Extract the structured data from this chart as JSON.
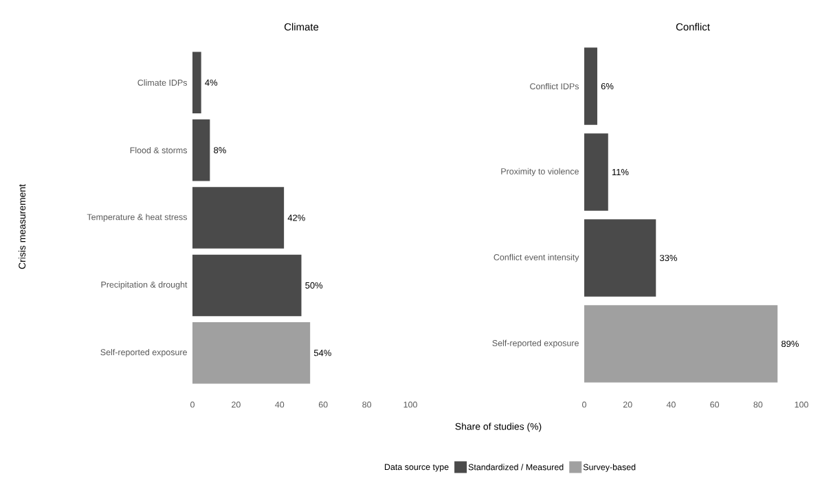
{
  "chart_data": [
    {
      "type": "bar",
      "orientation": "horizontal",
      "title": "Climate",
      "ylabel": "Crisis measurement",
      "categories": [
        "Climate IDPs",
        "Flood & storms",
        "Temperature & heat stress",
        "Precipitation & drought",
        "Self-reported exposure"
      ],
      "series": [
        {
          "color": "#4a4a4a",
          "values": [
            4,
            8,
            42,
            50,
            null
          ],
          "value_labels": [
            "4%",
            "8%",
            "42%",
            "50%",
            null
          ]
        },
        {
          "color": "#a0a0a0",
          "values": [
            null,
            null,
            null,
            null,
            54
          ],
          "value_labels": [
            null,
            null,
            null,
            null,
            "54%"
          ]
        }
      ],
      "xlim": [
        0,
        100
      ],
      "xticks": [
        0,
        20,
        40,
        60,
        80,
        100
      ]
    },
    {
      "type": "bar",
      "orientation": "horizontal",
      "title": "Conflict",
      "xlabel": "Share of studies (%)",
      "categories": [
        "Conflict IDPs",
        "Proximity to violence",
        "Conflict event intensity",
        "Self-reported exposure"
      ],
      "series": [
        {
          "name": "Standardized / Measured",
          "color": "#4a4a4a",
          "values": [
            6,
            11,
            33,
            null
          ],
          "value_labels": [
            "6%",
            "11%",
            "33%",
            null
          ]
        },
        {
          "name": "Survey-based",
          "color": "#a0a0a0",
          "values": [
            null,
            null,
            null,
            89
          ],
          "value_labels": [
            null,
            null,
            null,
            "89%"
          ]
        }
      ],
      "xlim": [
        0,
        100
      ],
      "xticks": [
        0,
        20,
        40,
        60,
        80,
        100
      ],
      "legend": "bottom",
      "legend_title": "Data source type"
    }
  ]
}
